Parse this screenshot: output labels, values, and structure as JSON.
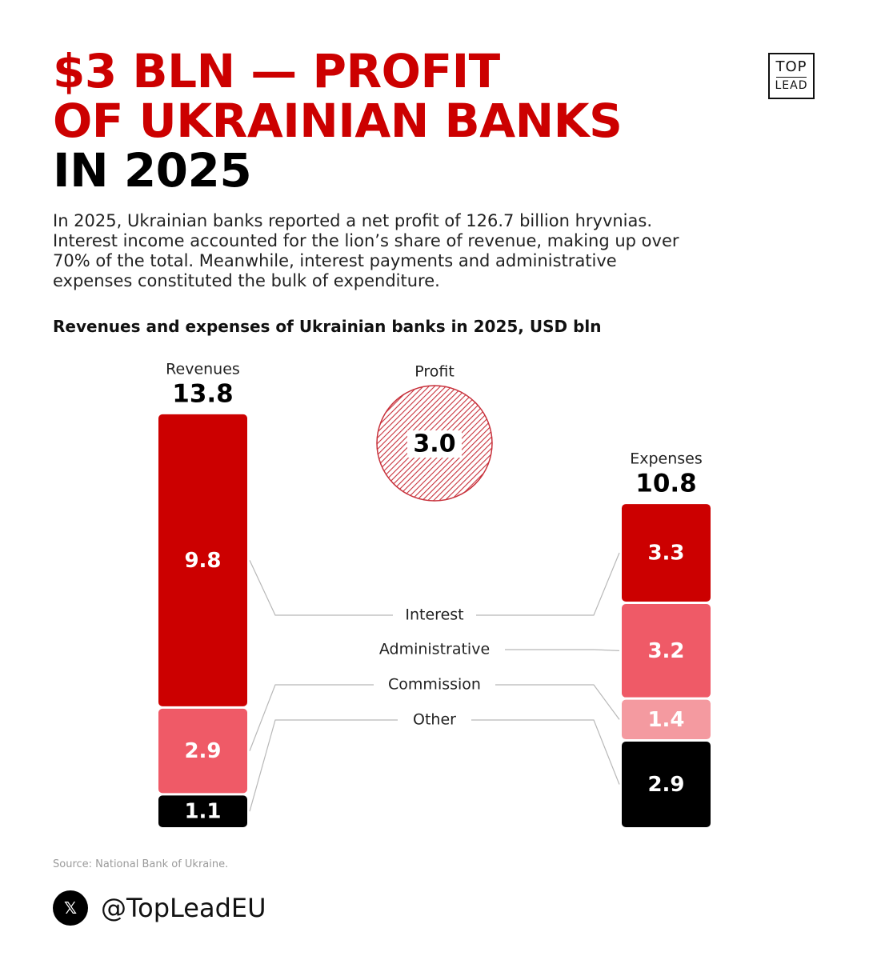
{
  "header": {
    "title_line1": "$3 BLN — PROFIT",
    "title_line2": "OF UKRAINIAN BANKS",
    "title_line3": "IN 2025",
    "logo_top": "TOP",
    "logo_bottom": "LEAD"
  },
  "intro": "In 2025, Ukrainian banks reported a net profit of 126.7 billion hryvnias. Interest income accounted for the lion’s share of revenue, making up over 70% of the total. Meanwhile, interest payments and administrative expenses constituted the bulk of expenditure.",
  "footer": {
    "source": "Source: National Bank of Ukraine.",
    "x_icon": "x-logo-icon",
    "handle": "@TopLeadEU"
  },
  "colors": {
    "red": "#cc0000",
    "pink": "#ef5a67",
    "light_pink": "#f49aa0",
    "black": "#000000"
  },
  "chart_data": {
    "type": "bar",
    "title": "Revenues and expenses of Ukrainian banks in 2025, USD bln",
    "unit": "USD bln",
    "revenues": {
      "label": "Revenues",
      "total": "13.8",
      "segments": [
        {
          "category": "Interest",
          "value": 9.8,
          "label": "9.8",
          "color": "#cc0000"
        },
        {
          "category": "Commission",
          "value": 2.9,
          "label": "2.9",
          "color": "#ef5a67"
        },
        {
          "category": "Other",
          "value": 1.1,
          "label": "1.1",
          "color": "#000000"
        }
      ]
    },
    "profit": {
      "label": "Profit",
      "value": 3.0,
      "value_label": "3.0"
    },
    "expenses": {
      "label": "Expenses",
      "total": "10.8",
      "segments": [
        {
          "category": "Interest",
          "value": 3.3,
          "label": "3.3",
          "color": "#cc0000"
        },
        {
          "category": "Administrative",
          "value": 3.2,
          "label": "3.2",
          "color": "#ef5a67"
        },
        {
          "category": "Commission",
          "value": 1.4,
          "label": "1.4",
          "color": "#f49aa0"
        },
        {
          "category": "Other",
          "value": 2.9,
          "label": "2.9",
          "color": "#000000"
        }
      ]
    },
    "categories": [
      "Interest",
      "Administrative",
      "Commission",
      "Other"
    ]
  }
}
